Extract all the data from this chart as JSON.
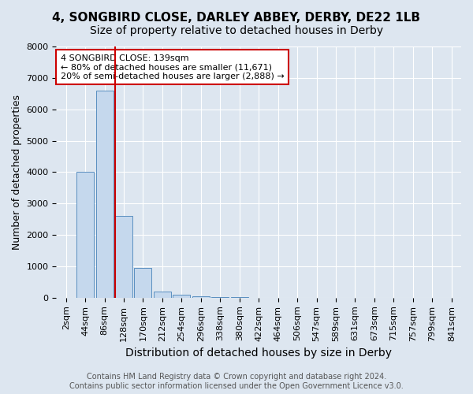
{
  "title": "4, SONGBIRD CLOSE, DARLEY ABBEY, DERBY, DE22 1LB",
  "subtitle": "Size of property relative to detached houses in Derby",
  "xlabel": "Distribution of detached houses by size in Derby",
  "ylabel": "Number of detached properties",
  "footer_line1": "Contains HM Land Registry data © Crown copyright and database right 2024.",
  "footer_line2": "Contains public sector information licensed under the Open Government Licence v3.0.",
  "bin_labels": [
    "2sqm",
    "44sqm",
    "86sqm",
    "128sqm",
    "170sqm",
    "212sqm",
    "254sqm",
    "296sqm",
    "338sqm",
    "380sqm",
    "422sqm",
    "464sqm",
    "506sqm",
    "547sqm",
    "589sqm",
    "631sqm",
    "673sqm",
    "715sqm",
    "757sqm",
    "799sqm",
    "841sqm"
  ],
  "bar_values": [
    0,
    4000,
    6600,
    2600,
    950,
    200,
    100,
    50,
    30,
    10,
    5,
    0,
    0,
    0,
    0,
    0,
    0,
    0,
    0,
    0,
    0
  ],
  "bar_color": "#c5d8ed",
  "bar_edge_color": "#5a8fc0",
  "property_size": 139,
  "property_bin_index": 3,
  "red_line_x": 2.55,
  "annotation_text": "4 SONGBIRD CLOSE: 139sqm\n← 80% of detached houses are smaller (11,671)\n20% of semi-detached houses are larger (2,888) →",
  "annotation_box_color": "#cc0000",
  "red_line_color": "#cc0000",
  "ylim": [
    0,
    8000
  ],
  "yticks": [
    0,
    1000,
    2000,
    3000,
    4000,
    5000,
    6000,
    7000,
    8000
  ],
  "background_color": "#dde6f0",
  "plot_bg_color": "#dde6f0",
  "title_fontsize": 11,
  "subtitle_fontsize": 10,
  "xlabel_fontsize": 10,
  "ylabel_fontsize": 9,
  "tick_fontsize": 8,
  "annotation_fontsize": 8,
  "footer_fontsize": 7
}
